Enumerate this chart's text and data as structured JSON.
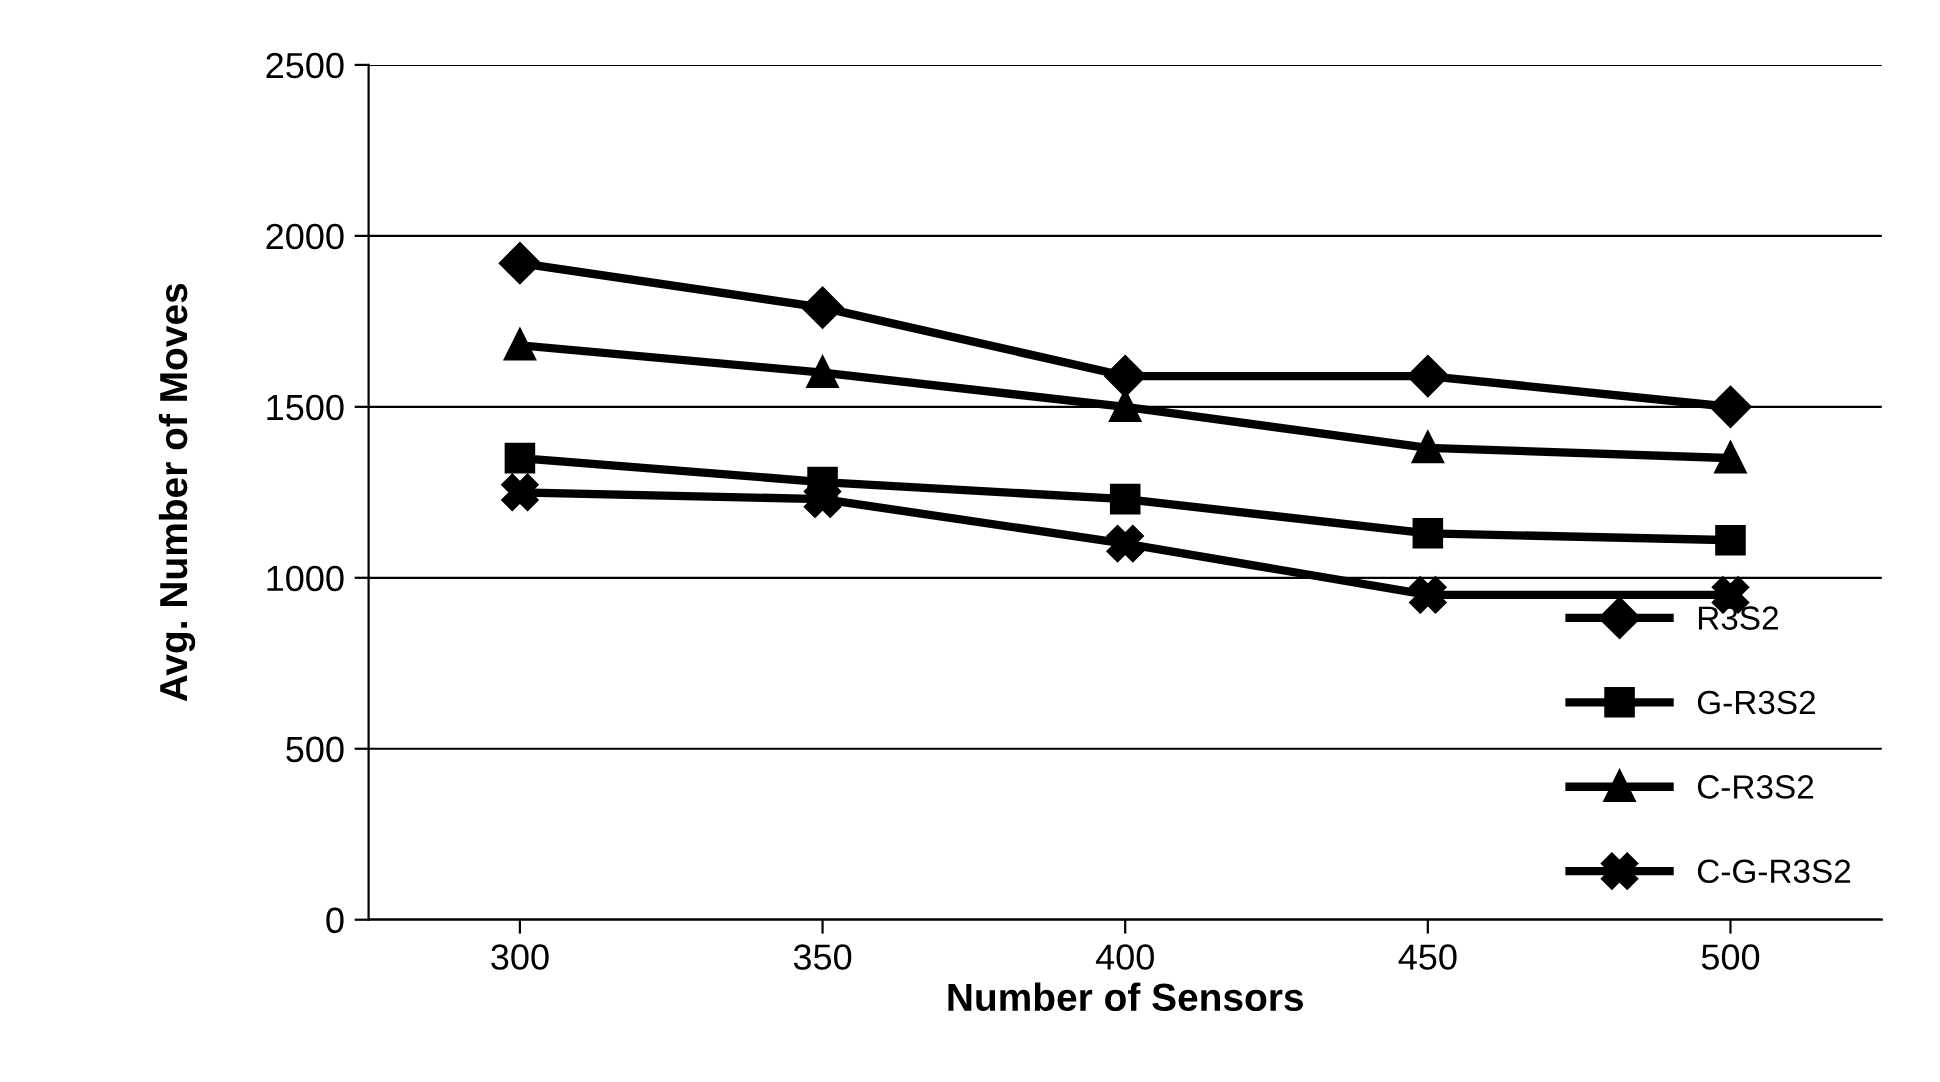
{
  "chart_data": {
    "type": "line",
    "xlabel": "Number of Sensors",
    "ylabel": "Avg. Number of Moves",
    "categories": [
      "300",
      "350",
      "400",
      "450",
      "500"
    ],
    "series": [
      {
        "name": "R3S2",
        "color": "#000000",
        "marker": "diamond",
        "values": [
          1920,
          1790,
          1590,
          1590,
          1500
        ]
      },
      {
        "name": "G-R3S2",
        "color": "#000000",
        "marker": "square",
        "values": [
          1350,
          1280,
          1230,
          1130,
          1110
        ]
      },
      {
        "name": "C-R3S2",
        "color": "#000000",
        "marker": "triangle",
        "values": [
          1680,
          1600,
          1500,
          1380,
          1350
        ]
      },
      {
        "name": "C-G-R3S2",
        "color": "#000000",
        "marker": "cross",
        "values": [
          1250,
          1230,
          1100,
          950,
          950
        ]
      }
    ],
    "ylim": [
      0,
      2500
    ],
    "yticks": [
      0,
      500,
      1000,
      1500,
      2000,
      2500
    ],
    "grid": "y",
    "legend": "bottom right",
    "line_style": "solid"
  }
}
